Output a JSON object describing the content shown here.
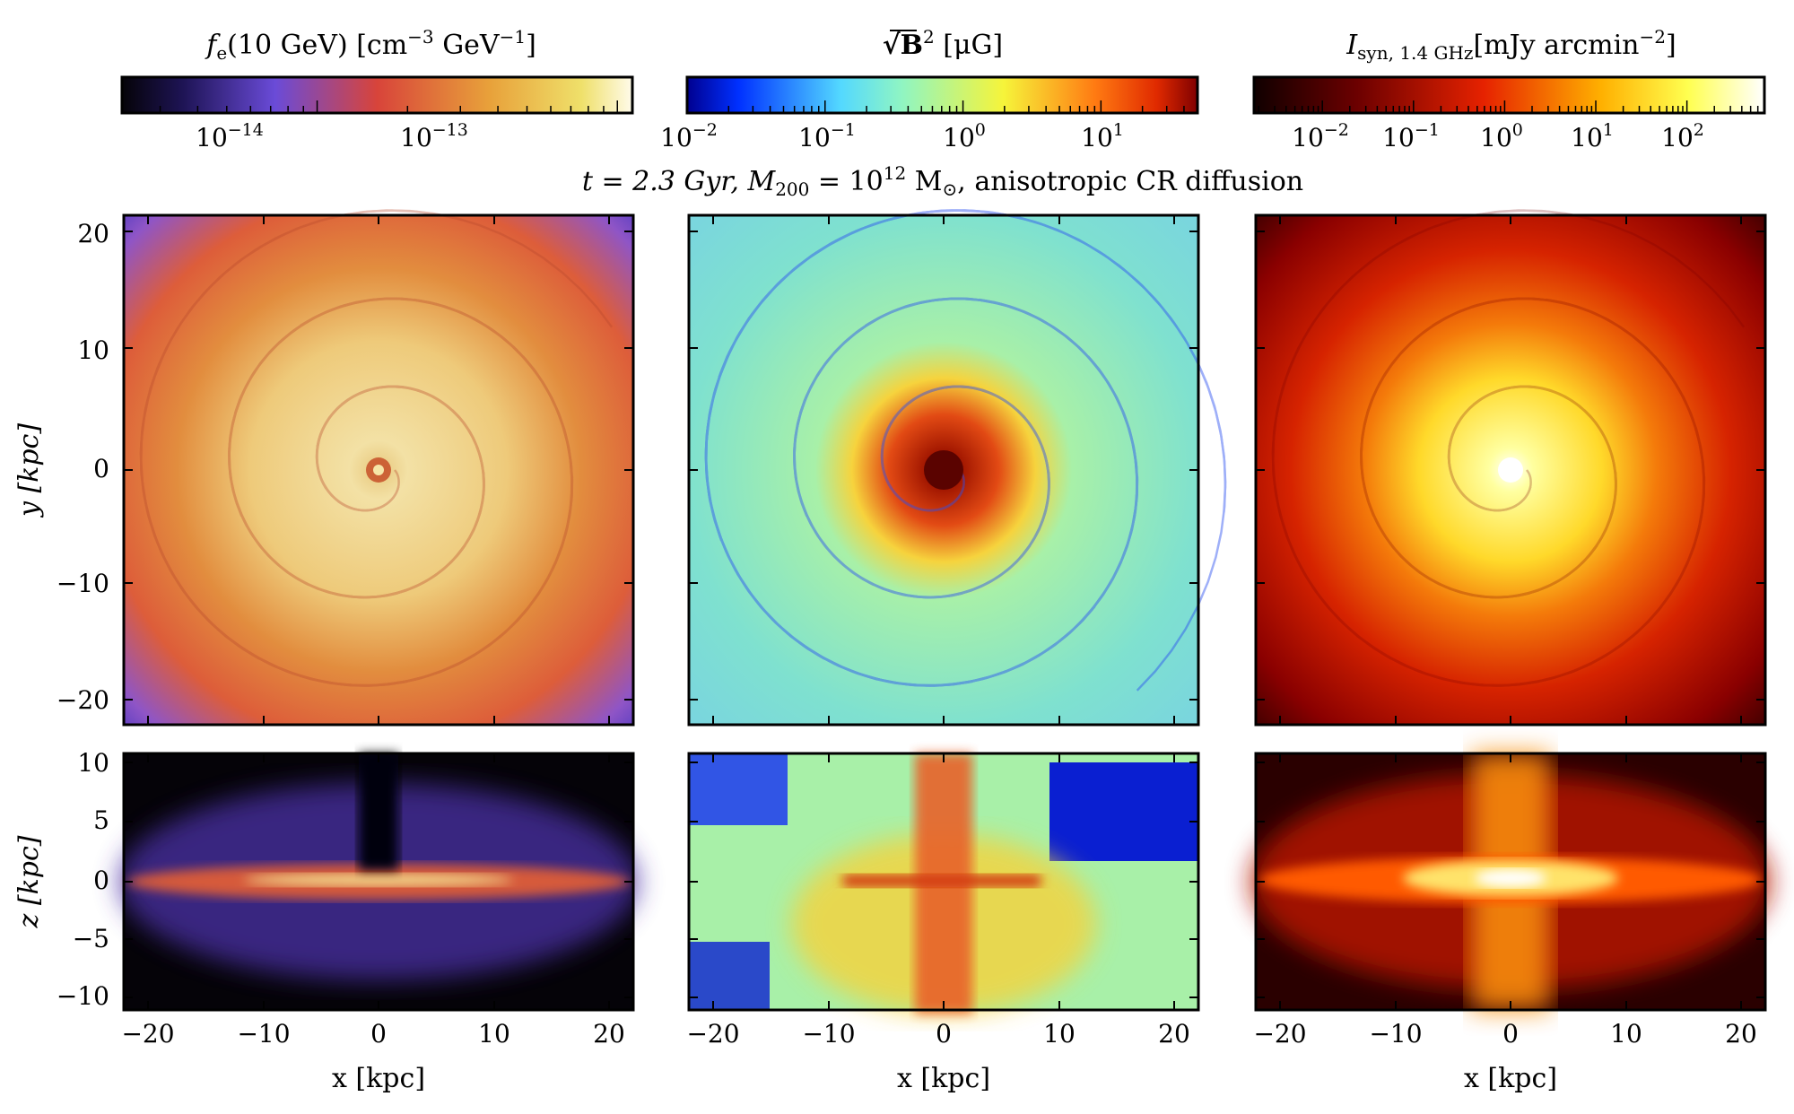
{
  "figure": {
    "title": {
      "t_label": "t = 2.3 Gyr,",
      "mass_label": "M",
      "mass_sub": "200",
      "mass_eq": " = 10",
      "mass_exp": "12",
      "mass_unit": " M",
      "mass_sun": "⊙",
      "rest": ", anisotropic CR diffusion"
    },
    "colorbars": [
      {
        "name": "fe",
        "label_main": "f",
        "label_sub": "e",
        "label_rest": "(10 GeV) [cm",
        "label_exp1": "−3",
        "label_mid": " GeV",
        "label_exp2": "−1",
        "label_end": "]",
        "colormap": "plasma-like",
        "ticks": [
          {
            "base": "10",
            "exp": "−14",
            "pos": 0.21
          },
          {
            "base": "10",
            "exp": "−13",
            "pos": 0.61
          }
        ]
      },
      {
        "name": "B",
        "label_main": "√B",
        "label_exp": "2",
        "label_end": " [μG]",
        "colormap": "jet",
        "ticks": [
          {
            "base": "10",
            "exp": "−2",
            "pos": 0.0
          },
          {
            "base": "10",
            "exp": "−1",
            "pos": 0.27
          },
          {
            "base": "10",
            "exp": "0",
            "pos": 0.54
          },
          {
            "base": "10",
            "exp": "1",
            "pos": 0.81
          }
        ]
      },
      {
        "name": "Isyn",
        "label_main": "I",
        "label_sub": "syn, 1.4 GHz",
        "label_rest": "[mJy arcmin",
        "label_exp": "−2",
        "label_end": "]",
        "colormap": "hot",
        "ticks": [
          {
            "base": "10",
            "exp": "−2",
            "pos": 0.13
          },
          {
            "base": "10",
            "exp": "−1",
            "pos": 0.31
          },
          {
            "base": "10",
            "exp": "0",
            "pos": 0.48
          },
          {
            "base": "10",
            "exp": "1",
            "pos": 0.66
          },
          {
            "base": "10",
            "exp": "2",
            "pos": 0.84
          }
        ]
      }
    ],
    "axes": {
      "y_label_top": "y [kpc]",
      "y_label_bottom": "z [kpc]",
      "x_label": "x [kpc]",
      "x_ticks": [
        "−20",
        "−10",
        "0",
        "10",
        "20"
      ],
      "y_ticks_top": [
        "20",
        "10",
        "0",
        "−10",
        "−20"
      ],
      "y_ticks_bottom": [
        "10",
        "5",
        "0",
        "−5",
        "−10"
      ]
    },
    "colors": {
      "fe_dark": "#0b0724",
      "fe_mid": "#d9482b",
      "fe_light": "#f7e7a6",
      "b_low": "#0a1fd1",
      "b_mid": "#8ff2c6",
      "b_high": "#a50e00",
      "syn_dark": "#2a0000",
      "syn_mid": "#e03a00",
      "syn_light": "#fffde0"
    }
  }
}
